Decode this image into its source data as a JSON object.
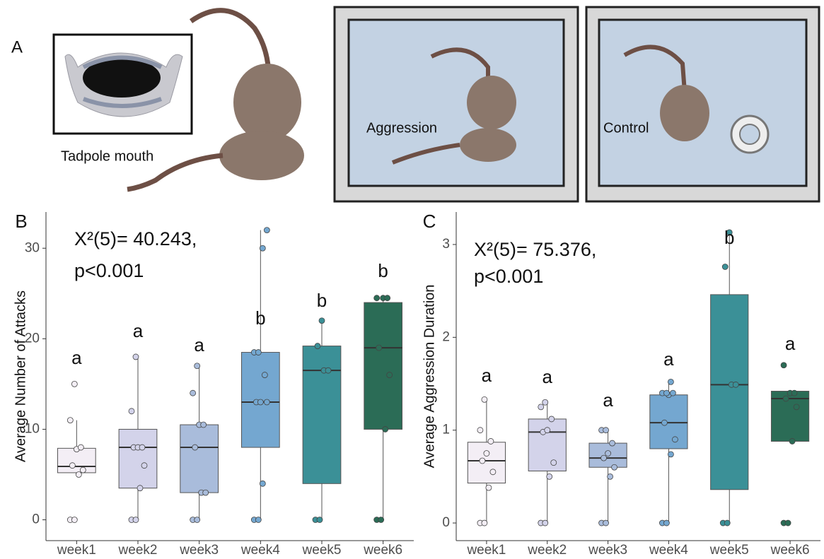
{
  "illustration": {
    "label": "A",
    "mouth_caption": "Tadpole mouth",
    "tanks": [
      "Aggression",
      "Control"
    ]
  },
  "chart_data": [
    {
      "type": "box",
      "panel": "B",
      "y_label": "Average Number of Attacks",
      "annotation": [
        "X²(5)= 40.243,",
        "p<0.001"
      ],
      "categories": [
        "week1",
        "week2",
        "week3",
        "week4",
        "week5",
        "week6"
      ],
      "colors": [
        "#f3eef5",
        "#d3d3ea",
        "#a9bcdb",
        "#74a7d0",
        "#3b9097",
        "#2b6c56"
      ],
      "letters": [
        "a",
        "a",
        "a",
        "b",
        "b",
        "b"
      ],
      "boxes": [
        {
          "whisker_low": 5.2,
          "q1": 5.2,
          "median": 5.9,
          "q3": 7.9,
          "whisker_high": 11
        },
        {
          "whisker_low": 0,
          "q1": 3.5,
          "median": 8,
          "q3": 10,
          "whisker_high": 18
        },
        {
          "whisker_low": 0,
          "q1": 3,
          "median": 8,
          "q3": 10.5,
          "whisker_high": 17
        },
        {
          "whisker_low": 0,
          "q1": 8,
          "median": 13,
          "q3": 18.5,
          "whisker_high": 32
        },
        {
          "whisker_low": 0,
          "q1": 4,
          "median": 16.5,
          "q3": 19.2,
          "whisker_high": 22
        },
        {
          "whisker_low": 0,
          "q1": 10,
          "median": 19,
          "q3": 24,
          "whisker_high": 24.8
        }
      ],
      "points": [
        [
          0,
          0,
          5,
          5.5,
          6,
          7.8,
          8,
          11,
          15
        ],
        [
          0,
          0,
          3.5,
          6,
          8,
          8,
          8,
          12,
          18
        ],
        [
          0,
          0,
          3,
          3,
          8,
          10.5,
          10.5,
          14,
          17
        ],
        [
          0,
          0,
          4,
          13,
          13,
          13,
          16,
          18.5,
          18.5,
          30,
          32
        ],
        [
          0,
          0,
          16.5,
          16.5,
          19.2,
          22
        ],
        [
          0,
          0,
          10,
          16,
          19,
          24.5,
          24.5,
          24.5
        ]
      ],
      "ylim": [
        -2.3,
        34
      ],
      "yticks": [
        0,
        10,
        20,
        30
      ]
    },
    {
      "type": "box",
      "panel": "C",
      "y_label": "Average Aggression Duration",
      "annotation": [
        "X²(5)= 75.376,",
        "p<0.001"
      ],
      "categories": [
        "week1",
        "week2",
        "week3",
        "week4",
        "week5",
        "week6"
      ],
      "colors": [
        "#f3eef5",
        "#d3d3ea",
        "#a9bcdb",
        "#74a7d0",
        "#3b9097",
        "#2b6c56"
      ],
      "letters": [
        "a",
        "a",
        "a",
        "a",
        "b",
        "a"
      ],
      "boxes": [
        {
          "whisker_low": 0,
          "q1": 0.43,
          "median": 0.67,
          "q3": 0.87,
          "whisker_high": 1.33
        },
        {
          "whisker_low": 0,
          "q1": 0.56,
          "median": 0.98,
          "q3": 1.12,
          "whisker_high": 1.3
        },
        {
          "whisker_low": 0,
          "q1": 0.6,
          "median": 0.7,
          "q3": 0.86,
          "whisker_high": 1.02
        },
        {
          "whisker_low": 0,
          "q1": 0.8,
          "median": 1.08,
          "q3": 1.38,
          "whisker_high": 1.52
        },
        {
          "whisker_low": 0,
          "q1": 0.36,
          "median": 1.49,
          "q3": 2.46,
          "whisker_high": 3.13
        },
        {
          "whisker_low": 0.88,
          "q1": 0.88,
          "median": 1.34,
          "q3": 1.42,
          "whisker_high": 1.42
        }
      ],
      "points": [
        [
          0,
          0,
          0.38,
          0.55,
          0.67,
          0.75,
          0.88,
          1,
          1.33
        ],
        [
          0,
          0,
          0.5,
          0.65,
          0.98,
          1,
          1.12,
          1.25,
          1.3
        ],
        [
          0,
          0,
          0.5,
          0.6,
          0.7,
          0.75,
          0.86,
          1,
          1
        ],
        [
          0,
          0,
          0.74,
          0.9,
          1.08,
          1.38,
          1.4,
          1.4,
          1.4,
          1.52
        ],
        [
          0,
          0,
          1.49,
          1.49,
          2.76,
          3.13
        ],
        [
          0,
          0,
          0.88,
          1.25,
          1.34,
          1.4,
          1.4,
          1.7
        ]
      ],
      "ylim": [
        -0.19,
        3.35
      ],
      "yticks": [
        0,
        1,
        2,
        3
      ]
    }
  ]
}
